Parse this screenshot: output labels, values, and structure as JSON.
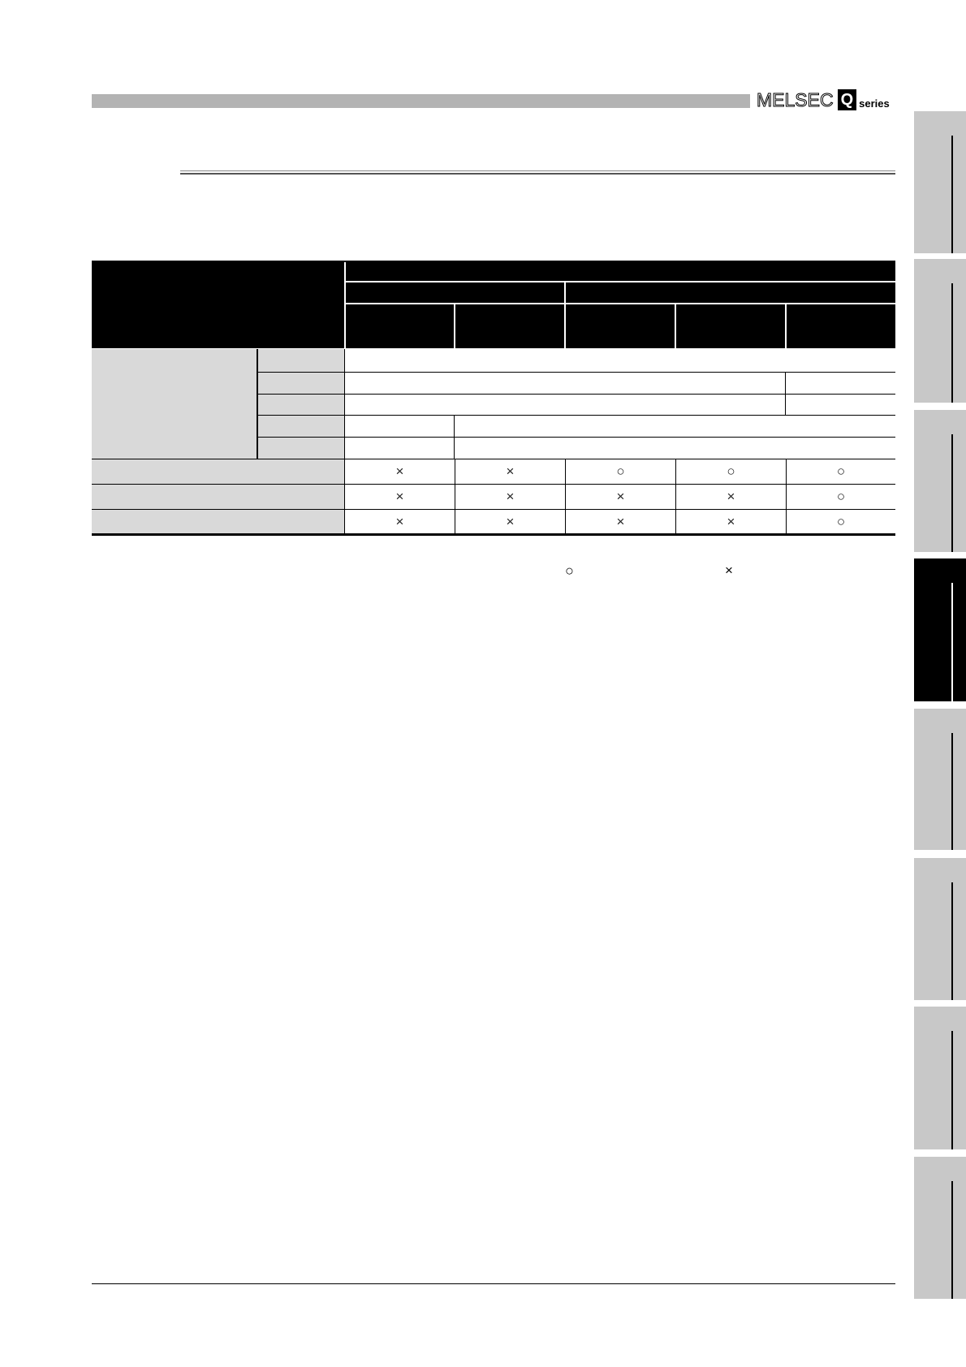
{
  "header": {
    "logo_text": "MELSEC",
    "logo_q": "Q",
    "logo_series": "series"
  },
  "table": {
    "rows": [
      [
        "×",
        "×",
        "○",
        "○",
        "○"
      ],
      [
        "×",
        "×",
        "×",
        "×",
        "○"
      ],
      [
        "×",
        "×",
        "×",
        "×",
        "○"
      ]
    ]
  },
  "footnote": {
    "yes_symbol": "○",
    "no_symbol": "×"
  },
  "side_tabs": {
    "active_index": 3,
    "count": 8
  },
  "colors": {
    "header_bar": "#b3b3b3",
    "row_header": "#d9d9d9",
    "tab": "#c8c8c8"
  }
}
